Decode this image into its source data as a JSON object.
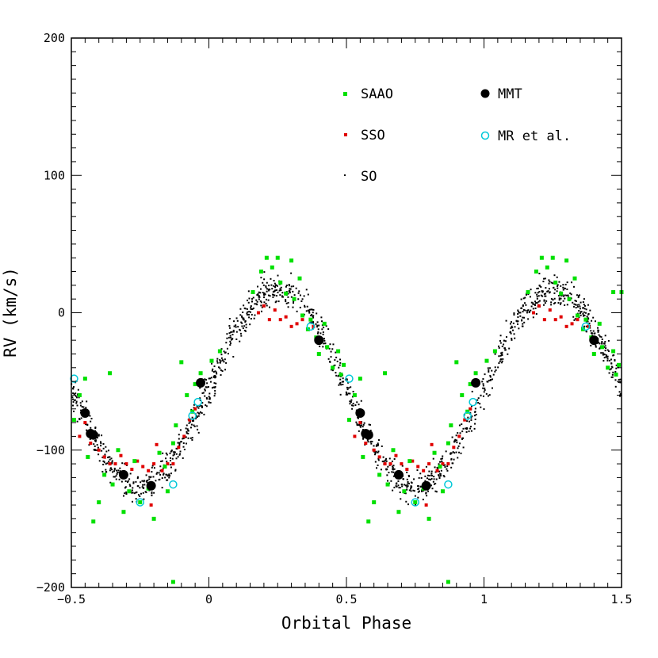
{
  "chart_data": {
    "type": "scatter",
    "title": "",
    "xlabel": "Orbital Phase",
    "ylabel": "RV (km/s)",
    "xlim": [
      -0.5,
      1.5
    ],
    "ylim": [
      -200,
      200
    ],
    "xticks": [
      -0.5,
      0,
      0.5,
      1,
      1.5
    ],
    "xtick_labels": [
      "−0.5",
      "0",
      "0.5",
      "1",
      "1.5"
    ],
    "yticks": [
      -200,
      -100,
      0,
      100,
      200
    ],
    "ytick_labels": [
      "−200",
      "−100",
      "0",
      "100",
      "200"
    ],
    "grid": false,
    "legend_position": "top-right",
    "model": {
      "description": "sinusoidal radial-velocity curve traced by the dense SO points",
      "gamma": -55,
      "semi_amplitude": 72,
      "peak_phase": 0.25
    },
    "series": [
      {
        "name": "SAAO",
        "marker": "filled-square",
        "color": "#00e000",
        "points": [
          [
            -0.49,
            -78
          ],
          [
            -0.47,
            -60
          ],
          [
            -0.45,
            -48
          ],
          [
            -0.44,
            -105
          ],
          [
            -0.42,
            -152
          ],
          [
            -0.4,
            -138
          ],
          [
            -0.38,
            -118
          ],
          [
            -0.36,
            -44
          ],
          [
            -0.35,
            -125
          ],
          [
            -0.33,
            -100
          ],
          [
            -0.31,
            -145
          ],
          [
            -0.29,
            -130
          ],
          [
            -0.27,
            -108
          ],
          [
            -0.25,
            -138
          ],
          [
            -0.22,
            -128
          ],
          [
            -0.2,
            -150
          ],
          [
            -0.18,
            -102
          ],
          [
            -0.16,
            -112
          ],
          [
            -0.15,
            -130
          ],
          [
            -0.13,
            -95
          ],
          [
            -0.12,
            -82
          ],
          [
            -0.1,
            -36
          ],
          [
            -0.08,
            -60
          ],
          [
            -0.06,
            -72
          ],
          [
            -0.05,
            -52
          ],
          [
            -0.03,
            -44
          ],
          [
            0.01,
            -35
          ],
          [
            0.04,
            -28
          ],
          [
            0.16,
            15
          ],
          [
            0.19,
            30
          ],
          [
            0.21,
            40
          ],
          [
            0.23,
            33
          ],
          [
            0.25,
            40
          ],
          [
            0.26,
            22
          ],
          [
            0.28,
            14
          ],
          [
            0.3,
            38
          ],
          [
            0.31,
            10
          ],
          [
            0.33,
            25
          ],
          [
            0.34,
            -2
          ],
          [
            0.36,
            -12
          ],
          [
            0.37,
            -5
          ],
          [
            0.39,
            -18
          ],
          [
            0.4,
            -30
          ],
          [
            0.42,
            -8
          ],
          [
            0.43,
            -25
          ],
          [
            0.45,
            -40
          ],
          [
            0.47,
            -28
          ],
          [
            0.48,
            -45
          ],
          [
            0.49,
            -38
          ],
          [
            0.51,
            -78
          ],
          [
            0.53,
            -60
          ],
          [
            0.55,
            -48
          ],
          [
            0.56,
            -105
          ],
          [
            0.58,
            -152
          ],
          [
            0.6,
            -138
          ],
          [
            0.62,
            -118
          ],
          [
            0.64,
            -44
          ],
          [
            0.65,
            -125
          ],
          [
            0.67,
            -100
          ],
          [
            0.69,
            -145
          ],
          [
            0.71,
            -130
          ],
          [
            0.73,
            -108
          ],
          [
            0.75,
            -138
          ],
          [
            0.78,
            -128
          ],
          [
            0.8,
            -150
          ],
          [
            0.82,
            -102
          ],
          [
            0.84,
            -112
          ],
          [
            0.85,
            -130
          ],
          [
            0.87,
            -95
          ],
          [
            0.88,
            -82
          ],
          [
            0.9,
            -36
          ],
          [
            0.92,
            -60
          ],
          [
            0.94,
            -72
          ],
          [
            0.95,
            -52
          ],
          [
            0.97,
            -44
          ],
          [
            1.01,
            -35
          ],
          [
            1.04,
            -28
          ],
          [
            1.16,
            15
          ],
          [
            1.19,
            30
          ],
          [
            1.21,
            40
          ],
          [
            1.23,
            33
          ],
          [
            1.25,
            40
          ],
          [
            1.26,
            22
          ],
          [
            1.28,
            14
          ],
          [
            1.3,
            38
          ],
          [
            1.31,
            10
          ],
          [
            1.33,
            25
          ],
          [
            1.34,
            -2
          ],
          [
            1.36,
            -12
          ],
          [
            1.37,
            -5
          ],
          [
            1.39,
            -18
          ],
          [
            1.4,
            -30
          ],
          [
            1.42,
            -8
          ],
          [
            1.43,
            -25
          ],
          [
            1.45,
            -40
          ],
          [
            1.47,
            -28
          ],
          [
            1.48,
            -45
          ],
          [
            1.49,
            -38
          ],
          [
            1.5,
            15
          ],
          [
            1.47,
            15
          ],
          [
            0.87,
            -196
          ],
          [
            -0.13,
            -196
          ]
        ]
      },
      {
        "name": "SSO",
        "marker": "small-filled",
        "color": "#e00000",
        "points": [
          [
            -0.47,
            -90
          ],
          [
            -0.45,
            -80
          ],
          [
            -0.43,
            -95
          ],
          [
            -0.4,
            -100
          ],
          [
            -0.38,
            -105
          ],
          [
            -0.36,
            -110
          ],
          [
            -0.34,
            -110
          ],
          [
            -0.32,
            -104
          ],
          [
            -0.3,
            -110
          ],
          [
            -0.28,
            -114
          ],
          [
            -0.26,
            -108
          ],
          [
            -0.24,
            -112
          ],
          [
            -0.22,
            -115
          ],
          [
            -0.2,
            -110
          ],
          [
            -0.19,
            -96
          ],
          [
            -0.17,
            -115
          ],
          [
            -0.15,
            -110
          ],
          [
            -0.13,
            -110
          ],
          [
            -0.11,
            -98
          ],
          [
            -0.09,
            -90
          ],
          [
            -0.07,
            -78
          ],
          [
            -0.05,
            -70
          ],
          [
            0.18,
            0
          ],
          [
            0.2,
            5
          ],
          [
            0.22,
            -5
          ],
          [
            0.24,
            2
          ],
          [
            0.26,
            -5
          ],
          [
            0.28,
            -3
          ],
          [
            0.3,
            -10
          ],
          [
            0.32,
            -8
          ],
          [
            0.34,
            -5
          ],
          [
            0.36,
            -12
          ],
          [
            0.38,
            -10
          ],
          [
            0.4,
            -18
          ],
          [
            0.53,
            -90
          ],
          [
            0.55,
            -80
          ],
          [
            0.57,
            -95
          ],
          [
            0.6,
            -100
          ],
          [
            0.62,
            -105
          ],
          [
            0.64,
            -110
          ],
          [
            0.66,
            -110
          ],
          [
            0.68,
            -104
          ],
          [
            0.7,
            -110
          ],
          [
            0.72,
            -114
          ],
          [
            0.74,
            -108
          ],
          [
            0.76,
            -112
          ],
          [
            0.78,
            -115
          ],
          [
            0.8,
            -110
          ],
          [
            0.81,
            -96
          ],
          [
            0.83,
            -115
          ],
          [
            0.85,
            -110
          ],
          [
            0.87,
            -110
          ],
          [
            0.89,
            -98
          ],
          [
            0.91,
            -90
          ],
          [
            0.93,
            -78
          ],
          [
            0.95,
            -70
          ],
          [
            1.18,
            0
          ],
          [
            1.2,
            5
          ],
          [
            1.22,
            -5
          ],
          [
            1.24,
            2
          ],
          [
            1.26,
            -5
          ],
          [
            1.28,
            -3
          ],
          [
            1.3,
            -10
          ],
          [
            1.32,
            -8
          ],
          [
            1.34,
            -5
          ],
          [
            1.36,
            -12
          ],
          [
            1.38,
            -10
          ],
          [
            1.4,
            -18
          ],
          [
            -0.21,
            -140
          ],
          [
            0.79,
            -140
          ]
        ]
      },
      {
        "name": "MMT",
        "marker": "large-filled-circle",
        "color": "#000000",
        "points": [
          [
            -0.45,
            -73
          ],
          [
            -0.43,
            -88
          ],
          [
            -0.42,
            -89
          ],
          [
            -0.31,
            -118
          ],
          [
            -0.21,
            -126
          ],
          [
            -0.03,
            -51
          ],
          [
            0.4,
            -20
          ],
          [
            0.55,
            -73
          ],
          [
            0.57,
            -88
          ],
          [
            0.58,
            -89
          ],
          [
            0.69,
            -118
          ],
          [
            0.79,
            -126
          ],
          [
            0.97,
            -51
          ],
          [
            1.4,
            -20
          ]
        ]
      },
      {
        "name": "MR et al.",
        "marker": "open-circle",
        "color": "#00c8d8",
        "points": [
          [
            -0.49,
            -48
          ],
          [
            -0.25,
            -138
          ],
          [
            -0.13,
            -125
          ],
          [
            -0.06,
            -75
          ],
          [
            -0.04,
            -65
          ],
          [
            0.37,
            -10
          ],
          [
            0.51,
            -48
          ],
          [
            0.75,
            -138
          ],
          [
            0.87,
            -125
          ],
          [
            0.94,
            -75
          ],
          [
            0.96,
            -65
          ],
          [
            1.37,
            -10
          ]
        ]
      }
    ],
    "legend": [
      {
        "label": "SAAO",
        "series": "SAAO"
      },
      {
        "label": "MMT",
        "series": "MMT"
      },
      {
        "label": "SSO",
        "series": "SSO"
      },
      {
        "label": "MR et al.",
        "series": "MR et al."
      },
      {
        "label": "SO",
        "series": "SO"
      }
    ],
    "colors": {
      "saao": "#00e000",
      "sso": "#e00000",
      "so": "#000000",
      "mmt": "#000000",
      "mr": "#00c8d8"
    }
  }
}
